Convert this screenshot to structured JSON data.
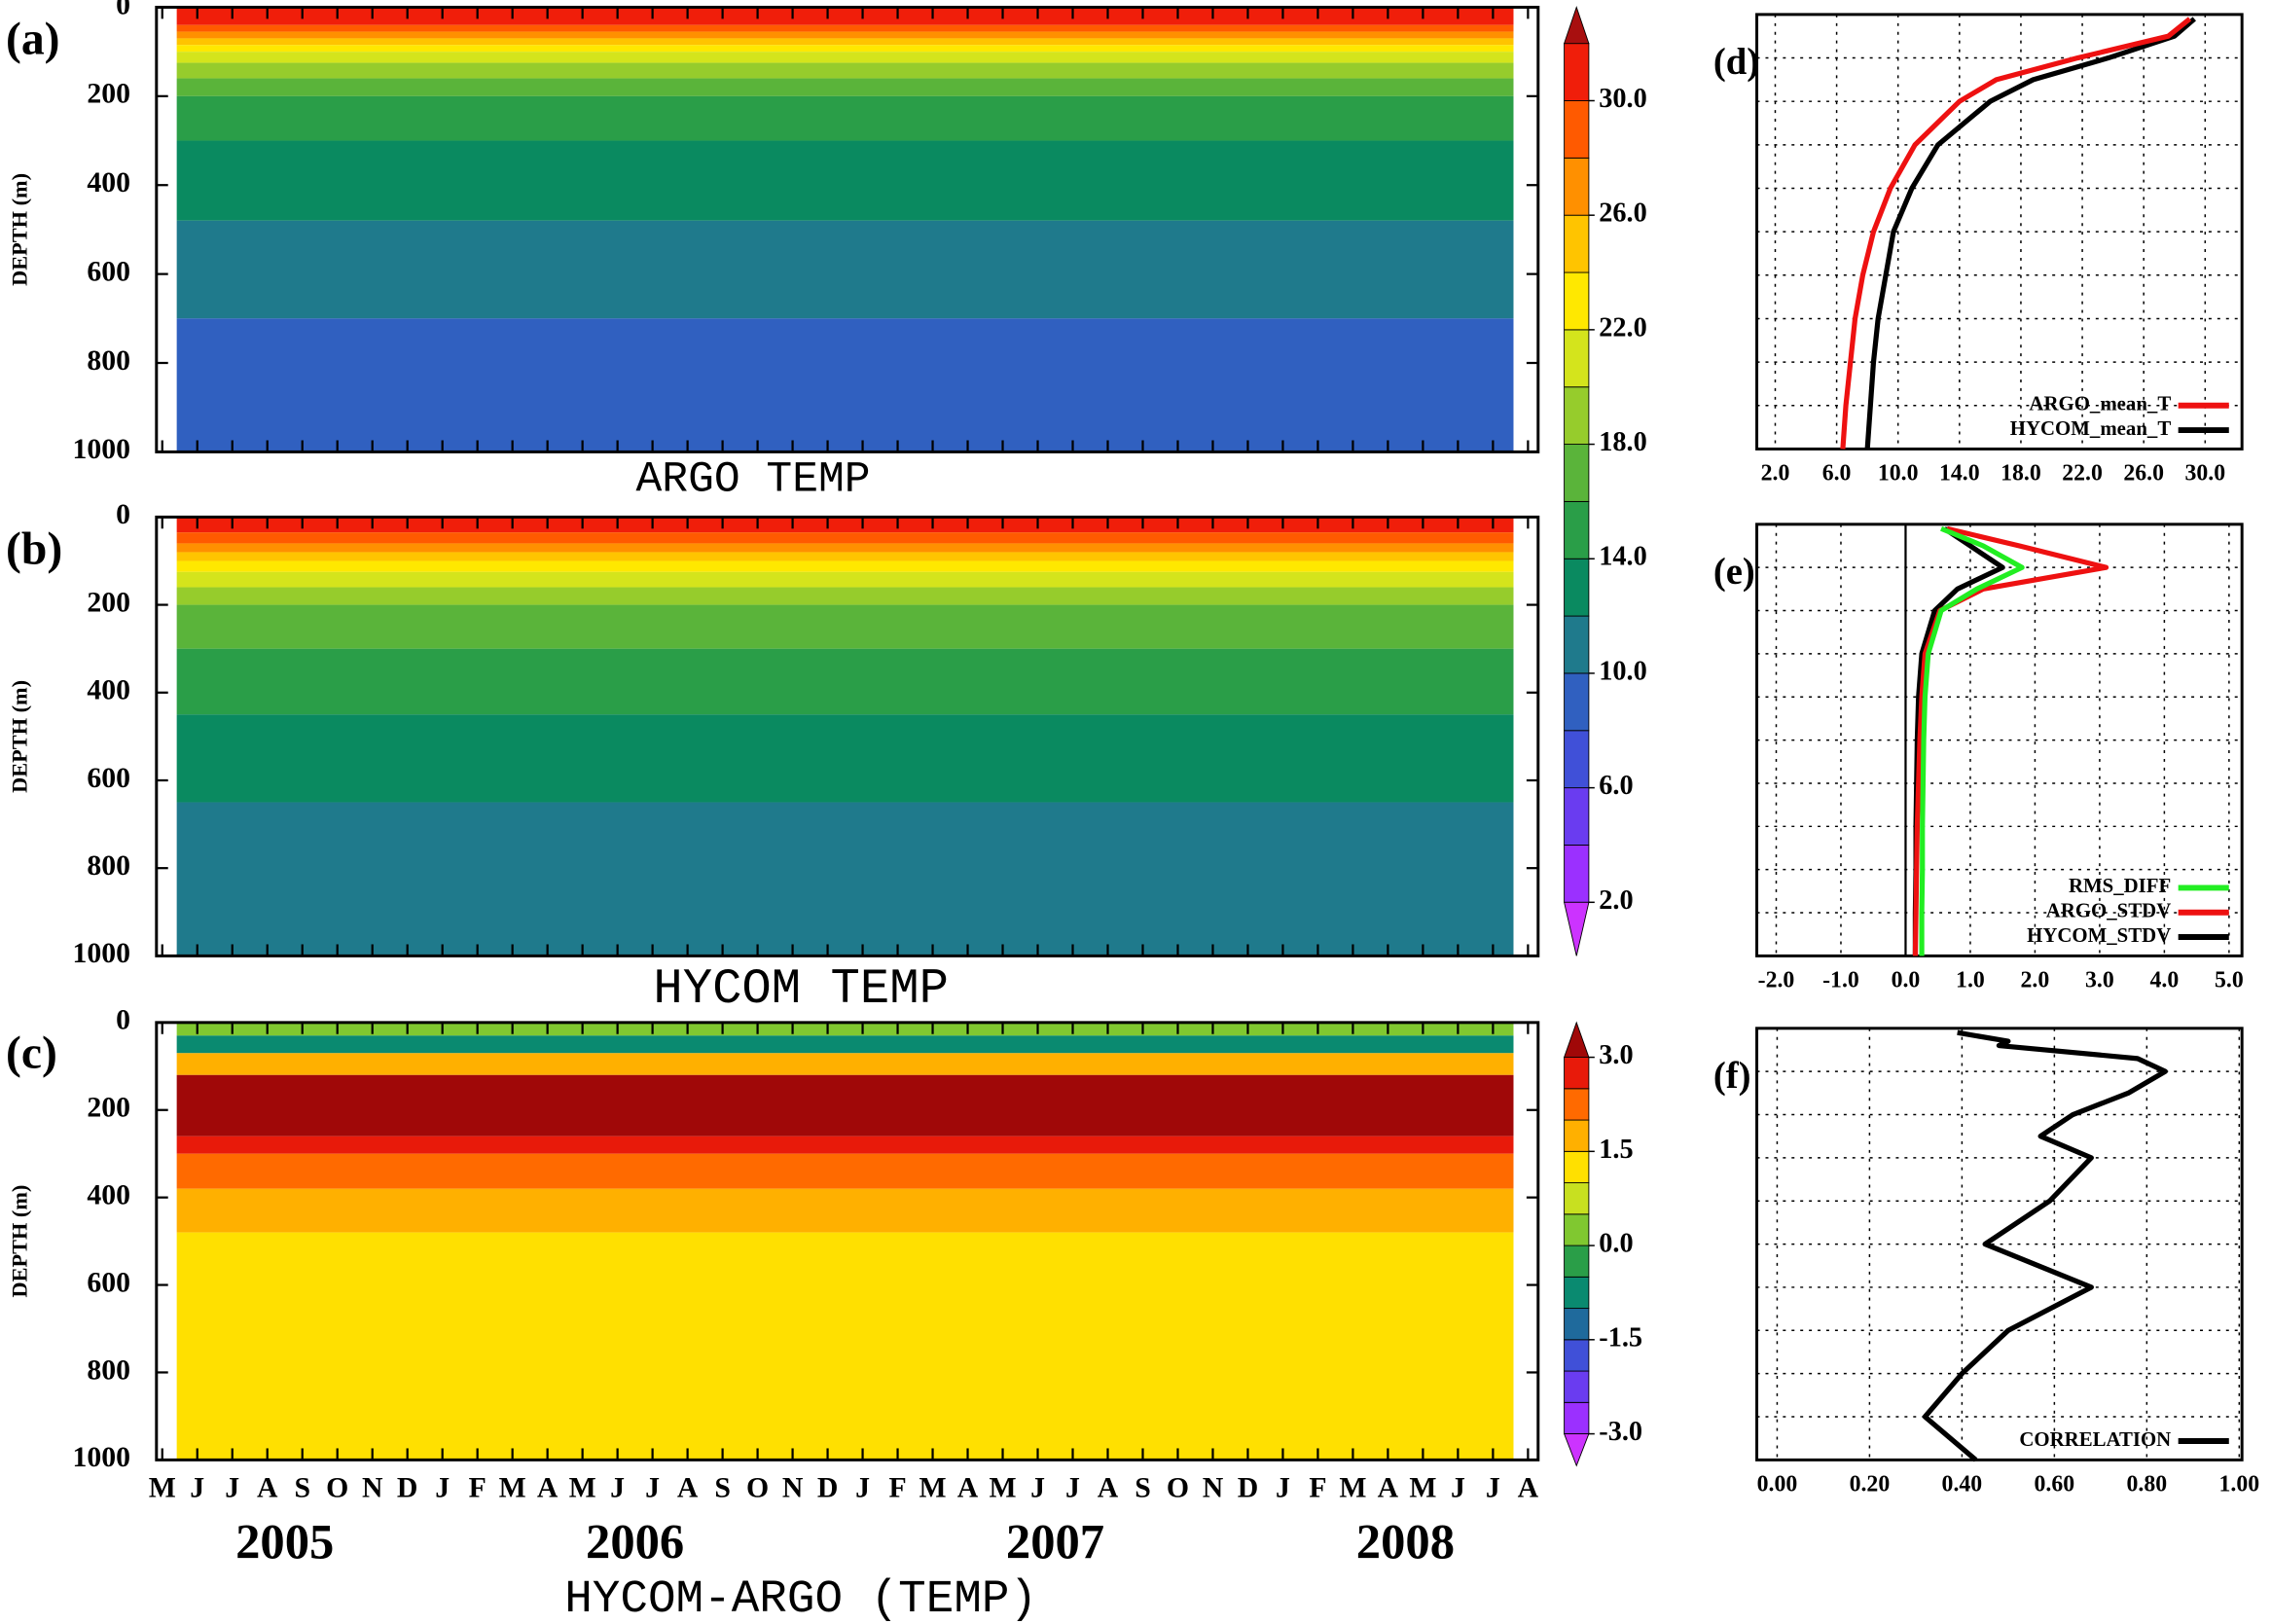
{
  "chart_data": [
    {
      "type": "contour",
      "panel_label": "(a)",
      "title": "ARGO TEMP",
      "ylabel": "DEPTH (m)",
      "ylim": [
        0,
        1000
      ],
      "invert_y": true,
      "yticks": [
        0,
        200,
        400,
        600,
        800,
        1000
      ],
      "bands": [
        {
          "value": 30,
          "top": 0,
          "bottom": 40
        },
        {
          "value": 28,
          "top": 40,
          "bottom": 55
        },
        {
          "value": 26,
          "top": 55,
          "bottom": 70
        },
        {
          "value": 24,
          "top": 70,
          "bottom": 85
        },
        {
          "value": 22,
          "top": 85,
          "bottom": 100
        },
        {
          "value": 20,
          "top": 100,
          "bottom": 125
        },
        {
          "value": 18,
          "top": 125,
          "bottom": 160
        },
        {
          "value": 16,
          "top": 160,
          "bottom": 200
        },
        {
          "value": 14,
          "top": 200,
          "bottom": 300
        },
        {
          "value": 12,
          "top": 300,
          "bottom": 480
        },
        {
          "value": 10,
          "top": 480,
          "bottom": 700
        },
        {
          "value": 8,
          "top": 700,
          "bottom": 1000
        }
      ],
      "colorbar": {
        "levels": [
          2,
          4,
          6,
          8,
          10,
          12,
          14,
          16,
          18,
          20,
          22,
          24,
          26,
          28,
          30,
          32
        ],
        "colors": [
          "#9b30ff",
          "#6a3cf0",
          "#4050d8",
          "#3060c0",
          "#1f7a8c",
          "#0a8a60",
          "#2a9e48",
          "#5ab43a",
          "#96cc2c",
          "#d4e41c",
          "#ffe800",
          "#ffc400",
          "#ff9000",
          "#ff5a00",
          "#f01e0a"
        ],
        "under": "#cc33ff",
        "over": "#a80f0f",
        "ticks": [
          {
            "value": 2,
            "label": "2.0"
          },
          {
            "value": 6,
            "label": "6.0"
          },
          {
            "value": 10,
            "label": "10.0"
          },
          {
            "value": 14,
            "label": "14.0"
          },
          {
            "value": 18,
            "label": "18.0"
          },
          {
            "value": 22,
            "label": "22.0"
          },
          {
            "value": 26,
            "label": "26.0"
          },
          {
            "value": 30,
            "label": "30.0"
          }
        ]
      }
    },
    {
      "type": "contour",
      "panel_label": "(b)",
      "title": "HYCOM TEMP",
      "ylabel": "DEPTH (m)",
      "ylim": [
        0,
        1000
      ],
      "invert_y": true,
      "yticks": [
        0,
        200,
        400,
        600,
        800,
        1000
      ],
      "bands": [
        {
          "value": 30,
          "top": 0,
          "bottom": 35
        },
        {
          "value": 28,
          "top": 35,
          "bottom": 60
        },
        {
          "value": 26,
          "top": 60,
          "bottom": 80
        },
        {
          "value": 24,
          "top": 80,
          "bottom": 100
        },
        {
          "value": 22,
          "top": 100,
          "bottom": 125
        },
        {
          "value": 20,
          "top": 125,
          "bottom": 160
        },
        {
          "value": 18,
          "top": 160,
          "bottom": 200
        },
        {
          "value": 16,
          "top": 200,
          "bottom": 300
        },
        {
          "value": 14,
          "top": 300,
          "bottom": 450
        },
        {
          "value": 12,
          "top": 450,
          "bottom": 650
        },
        {
          "value": 10,
          "top": 650,
          "bottom": 1000
        }
      ]
    },
    {
      "type": "contour",
      "panel_label": "(c)",
      "xlabel": "HYCOM-ARGO (TEMP)",
      "ylabel": "DEPTH (m)",
      "ylim": [
        0,
        1000
      ],
      "invert_y": true,
      "yticks": [
        0,
        200,
        400,
        600,
        800,
        1000
      ],
      "categories": [
        "M",
        "J",
        "J",
        "A",
        "S",
        "O",
        "N",
        "D",
        "J",
        "F",
        "M",
        "A",
        "M",
        "J",
        "J",
        "A",
        "S",
        "O",
        "N",
        "D",
        "J",
        "F",
        "M",
        "A",
        "M",
        "J",
        "J",
        "A",
        "S",
        "O",
        "N",
        "D",
        "J",
        "F",
        "M",
        "A",
        "M",
        "J",
        "J",
        "A"
      ],
      "years": [
        "2005",
        "2006",
        "2007",
        "2008"
      ],
      "bands": [
        {
          "value": 0,
          "top": 0,
          "bottom": 30
        },
        {
          "value": -1,
          "top": 30,
          "bottom": 70
        },
        {
          "value": 1.5,
          "top": 70,
          "bottom": 120
        },
        {
          "value": 3,
          "top": 120,
          "bottom": 260
        },
        {
          "value": 2.5,
          "top": 260,
          "bottom": 300
        },
        {
          "value": 2,
          "top": 300,
          "bottom": 380
        },
        {
          "value": 1.5,
          "top": 380,
          "bottom": 480
        },
        {
          "value": 1,
          "top": 480,
          "bottom": 1000
        }
      ],
      "colorbar": {
        "levels": [
          -3,
          -2.5,
          -2,
          -1.5,
          -1,
          -0.5,
          0,
          0.5,
          1,
          1.5,
          2,
          2.5,
          3
        ],
        "colors": [
          "#9b30ff",
          "#6a3cf0",
          "#4050d8",
          "#1f6a9c",
          "#0a8a70",
          "#2a9e48",
          "#80c830",
          "#c8e020",
          "#ffe000",
          "#ffb000",
          "#ff6a00",
          "#e81a0a"
        ],
        "under": "#cc33ff",
        "over": "#a00808",
        "ticks": [
          {
            "value": -3,
            "label": "-3.0"
          },
          {
            "value": -1.5,
            "label": "-1.5"
          },
          {
            "value": 0,
            "label": "0.0"
          },
          {
            "value": 1.5,
            "label": "1.5"
          },
          {
            "value": 3,
            "label": "3.0"
          }
        ]
      }
    },
    {
      "type": "line",
      "panel_label": "(d)",
      "legend": "lower right",
      "invert_y": true,
      "ylim": [
        0,
        1000
      ],
      "ygrid": [
        100,
        200,
        300,
        400,
        500,
        600,
        700,
        800,
        900
      ],
      "xlim": [
        0.8,
        32.4
      ],
      "xticks": [
        {
          "value": 2,
          "label": "2.0"
        },
        {
          "value": 6,
          "label": "6.0"
        },
        {
          "value": 10,
          "label": "10.0"
        },
        {
          "value": 14,
          "label": "14.0"
        },
        {
          "value": 18,
          "label": "18.0"
        },
        {
          "value": 22,
          "label": "22.0"
        },
        {
          "value": 26,
          "label": "26.0"
        },
        {
          "value": 30,
          "label": "30.0"
        }
      ],
      "y": [
        10,
        50,
        100,
        150,
        200,
        300,
        400,
        500,
        600,
        700,
        800,
        900,
        1000
      ],
      "series": [
        {
          "name": "ARGO_mean_T",
          "color": "#ee1111",
          "values": [
            29,
            27.6,
            21.7,
            16.4,
            14,
            11.1,
            9.5,
            8.4,
            7.7,
            7.2,
            6.9,
            6.6,
            6.4
          ]
        },
        {
          "name": "HYCOM_mean_T",
          "color": "#000000",
          "values": [
            29.3,
            28,
            23.7,
            18.8,
            16,
            12.6,
            10.9,
            9.7,
            9.2,
            8.7,
            8.4,
            8.2,
            8
          ]
        }
      ]
    },
    {
      "type": "line",
      "panel_label": "(e)",
      "legend": "lower right",
      "invert_y": true,
      "ylim": [
        0,
        1000
      ],
      "zero_line": true,
      "ygrid": [
        100,
        200,
        300,
        400,
        500,
        600,
        700,
        800,
        900
      ],
      "xlim": [
        -2.3,
        5.2
      ],
      "xticks": [
        {
          "value": -2,
          "label": "-2.0"
        },
        {
          "value": -1,
          "label": "-1.0"
        },
        {
          "value": 0,
          "label": "0.0"
        },
        {
          "value": 1,
          "label": "1.0"
        },
        {
          "value": 2,
          "label": "2.0"
        },
        {
          "value": 3,
          "label": "3.0"
        },
        {
          "value": 4,
          "label": "4.0"
        },
        {
          "value": 5,
          "label": "5.0"
        }
      ],
      "y": [
        10,
        50,
        100,
        150,
        200,
        300,
        400,
        500,
        600,
        700,
        800,
        900,
        1000
      ],
      "series": [
        {
          "name": "RMS_DIFF",
          "color": "#22ee22",
          "values": [
            0.55,
            1.2,
            1.8,
            1.1,
            0.55,
            0.35,
            0.3,
            0.28,
            0.27,
            0.26,
            0.26,
            0.25,
            0.25
          ]
        },
        {
          "name": "ARGO_STDV",
          "color": "#ee1111",
          "values": [
            0.64,
            1.76,
            3.1,
            1.2,
            0.53,
            0.3,
            0.25,
            0.22,
            0.2,
            0.18,
            0.17,
            0.16,
            0.15
          ]
        },
        {
          "name": "HYCOM_STDV",
          "color": "#000000",
          "values": [
            0.6,
            1,
            1.5,
            0.8,
            0.45,
            0.25,
            0.2,
            0.18,
            0.17,
            0.16,
            0.16,
            0.15,
            0.15
          ]
        }
      ]
    },
    {
      "type": "line",
      "panel_label": "(f)",
      "legend": "lower right",
      "invert_y": true,
      "ylim": [
        0,
        1000
      ],
      "ygrid": [
        100,
        200,
        300,
        400,
        500,
        600,
        700,
        800,
        900
      ],
      "xlim": [
        -0.044,
        1.006
      ],
      "xticks": [
        {
          "value": 0,
          "label": "0.00"
        },
        {
          "value": 0.2,
          "label": "0.20"
        },
        {
          "value": 0.4,
          "label": "0.40"
        },
        {
          "value": 0.6,
          "label": "0.60"
        },
        {
          "value": 0.8,
          "label": "0.80"
        },
        {
          "value": 1,
          "label": "1.00"
        }
      ],
      "y": [
        10,
        30,
        40,
        70,
        100,
        150,
        200,
        250,
        300,
        400,
        500,
        600,
        700,
        800,
        900,
        1000
      ],
      "series": [
        {
          "name": "CORRELATION",
          "color": "#000000",
          "values": [
            0.39,
            0.5,
            0.48,
            0.78,
            0.84,
            0.76,
            0.64,
            0.57,
            0.68,
            0.59,
            0.45,
            0.68,
            0.5,
            0.4,
            0.32,
            0.43
          ]
        }
      ]
    }
  ]
}
